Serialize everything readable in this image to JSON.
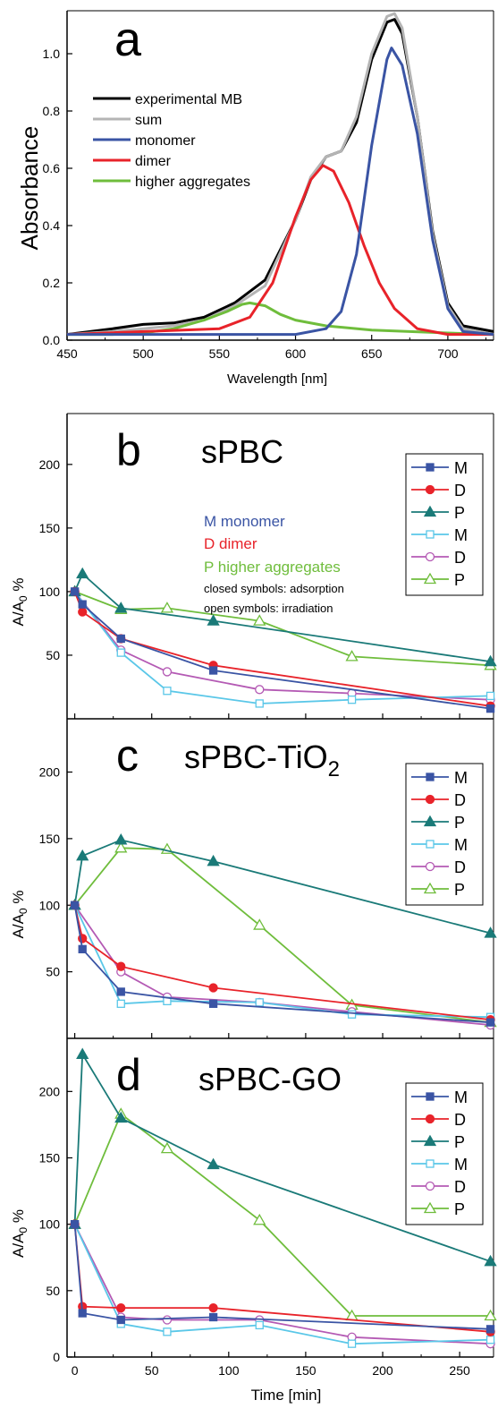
{
  "colors": {
    "black": "#000000",
    "gray": "#b4b4b4",
    "blue": "#3a54a4",
    "red": "#e8232a",
    "teal": "#1a7a78",
    "cyan": "#5ac7e8",
    "magenta": "#b45ab4",
    "green": "#6fbd3c"
  },
  "chart_data": [
    {
      "panel": "a",
      "type": "line",
      "xlabel": "Wavelength [nm]",
      "ylabel": "Absorbance",
      "xlim": [
        450,
        730
      ],
      "ylim": [
        0,
        1.15
      ],
      "xticks": [
        450,
        500,
        550,
        600,
        650,
        700
      ],
      "yticks": [
        0.0,
        0.2,
        0.4,
        0.6,
        0.8,
        1.0
      ],
      "legend": [
        "experimental MB",
        "sum",
        "monomer",
        "dimer",
        "higher aggregates"
      ],
      "series": [
        {
          "name": "experimental MB",
          "color": "black",
          "x": [
            450,
            480,
            500,
            520,
            540,
            560,
            580,
            600,
            610,
            620,
            630,
            640,
            650,
            660,
            665,
            670,
            680,
            690,
            700,
            710,
            730
          ],
          "y": [
            0.02,
            0.04,
            0.055,
            0.06,
            0.08,
            0.13,
            0.21,
            0.42,
            0.56,
            0.64,
            0.66,
            0.76,
            0.98,
            1.11,
            1.12,
            1.07,
            0.78,
            0.38,
            0.13,
            0.05,
            0.03
          ]
        },
        {
          "name": "sum",
          "color": "gray",
          "x": [
            450,
            480,
            500,
            520,
            540,
            560,
            580,
            600,
            610,
            620,
            630,
            640,
            650,
            660,
            665,
            670,
            680,
            690,
            700,
            710,
            730
          ],
          "y": [
            0.02,
            0.03,
            0.04,
            0.05,
            0.07,
            0.12,
            0.19,
            0.42,
            0.57,
            0.64,
            0.66,
            0.78,
            1.0,
            1.13,
            1.14,
            1.09,
            0.78,
            0.37,
            0.12,
            0.04,
            0.02
          ]
        },
        {
          "name": "monomer",
          "color": "blue",
          "x": [
            450,
            550,
            600,
            620,
            630,
            640,
            650,
            660,
            663,
            670,
            680,
            690,
            700,
            710,
            730
          ],
          "y": [
            0.02,
            0.02,
            0.02,
            0.04,
            0.1,
            0.3,
            0.68,
            0.98,
            1.02,
            0.96,
            0.72,
            0.35,
            0.11,
            0.03,
            0.02
          ]
        },
        {
          "name": "dimer",
          "color": "red",
          "x": [
            450,
            550,
            570,
            585,
            600,
            610,
            618,
            625,
            635,
            645,
            655,
            665,
            680,
            700,
            730
          ],
          "y": [
            0.02,
            0.04,
            0.08,
            0.2,
            0.43,
            0.56,
            0.61,
            0.59,
            0.48,
            0.33,
            0.2,
            0.11,
            0.04,
            0.02,
            0.02
          ]
        },
        {
          "name": "higher aggregates",
          "color": "green",
          "x": [
            450,
            480,
            500,
            520,
            540,
            555,
            565,
            570,
            580,
            590,
            600,
            620,
            650,
            700,
            730
          ],
          "y": [
            0.02,
            0.02,
            0.025,
            0.04,
            0.07,
            0.1,
            0.125,
            0.13,
            0.12,
            0.09,
            0.07,
            0.05,
            0.035,
            0.025,
            0.02
          ]
        }
      ],
      "label": "a"
    },
    {
      "panel": "b",
      "type": "line",
      "ylabel": "A/A0 %",
      "xlim": [
        -5,
        272
      ],
      "ylim": [
        0,
        240
      ],
      "yticks": [
        50,
        100,
        150,
        200
      ],
      "label": "b",
      "sample": "sPBC",
      "annotations": [
        "M monomer",
        "D dimer",
        "P higher aggregates",
        "closed symbols: adsorption",
        "open symbols: irradiation"
      ],
      "legend": [
        "M",
        "D",
        "P",
        "M",
        "D",
        "P"
      ],
      "series": [
        {
          "name": "M",
          "color": "blue",
          "marker": "square-filled",
          "x": [
            0,
            5,
            30,
            90,
            270
          ],
          "y": [
            100,
            90,
            63,
            38,
            8
          ]
        },
        {
          "name": "D",
          "color": "red",
          "marker": "circle-filled",
          "x": [
            0,
            5,
            30,
            90,
            270
          ],
          "y": [
            100,
            84,
            63,
            42,
            10
          ]
        },
        {
          "name": "P",
          "color": "teal",
          "marker": "triangle-filled",
          "x": [
            0,
            5,
            30,
            90,
            270
          ],
          "y": [
            100,
            114,
            87,
            77,
            45
          ]
        },
        {
          "name": "M",
          "color": "cyan",
          "marker": "square-open",
          "x": [
            0,
            30,
            60,
            120,
            180,
            270
          ],
          "y": [
            100,
            52,
            22,
            12,
            15,
            18
          ]
        },
        {
          "name": "D",
          "color": "magenta",
          "marker": "circle-open",
          "x": [
            0,
            30,
            60,
            120,
            180,
            270
          ],
          "y": [
            100,
            54,
            37,
            23,
            20,
            15
          ]
        },
        {
          "name": "P",
          "color": "green",
          "marker": "triangle-open",
          "x": [
            0,
            30,
            60,
            120,
            180,
            270
          ],
          "y": [
            100,
            86,
            87,
            77,
            49,
            42
          ]
        }
      ]
    },
    {
      "panel": "c",
      "type": "line",
      "ylabel": "A/A0 %",
      "xlim": [
        -5,
        272
      ],
      "ylim": [
        0,
        240
      ],
      "yticks": [
        50,
        100,
        150,
        200
      ],
      "label": "c",
      "sample": "sPBC-TiO2",
      "legend": [
        "M",
        "D",
        "P",
        "M",
        "D",
        "P"
      ],
      "series": [
        {
          "name": "M",
          "color": "blue",
          "marker": "square-filled",
          "x": [
            0,
            5,
            30,
            90,
            270
          ],
          "y": [
            100,
            67,
            35,
            26,
            12
          ]
        },
        {
          "name": "D",
          "color": "red",
          "marker": "circle-filled",
          "x": [
            0,
            5,
            30,
            90,
            270
          ],
          "y": [
            100,
            75,
            54,
            38,
            14
          ]
        },
        {
          "name": "P",
          "color": "teal",
          "marker": "triangle-filled",
          "x": [
            0,
            5,
            30,
            90,
            270
          ],
          "y": [
            100,
            137,
            149,
            133,
            79
          ]
        },
        {
          "name": "M",
          "color": "cyan",
          "marker": "square-open",
          "x": [
            0,
            30,
            60,
            120,
            180,
            270
          ],
          "y": [
            100,
            26,
            28,
            27,
            18,
            16
          ]
        },
        {
          "name": "D",
          "color": "magenta",
          "marker": "circle-open",
          "x": [
            0,
            30,
            60,
            120,
            180,
            270
          ],
          "y": [
            100,
            50,
            31,
            27,
            20,
            10
          ]
        },
        {
          "name": "P",
          "color": "green",
          "marker": "triangle-open",
          "x": [
            0,
            30,
            60,
            120,
            180,
            270
          ],
          "y": [
            100,
            143,
            142,
            85,
            25,
            12
          ]
        }
      ]
    },
    {
      "panel": "d",
      "type": "line",
      "xlabel": "Time [min]",
      "ylabel": "A/A0 %",
      "xlim": [
        -5,
        272
      ],
      "ylim": [
        0,
        240
      ],
      "xticks": [
        0,
        50,
        100,
        150,
        200,
        250
      ],
      "yticks": [
        0,
        50,
        100,
        150,
        200
      ],
      "label": "d",
      "sample": "sPBC-GO",
      "legend": [
        "M",
        "D",
        "P",
        "M",
        "D",
        "P"
      ],
      "series": [
        {
          "name": "M",
          "color": "blue",
          "marker": "square-filled",
          "x": [
            0,
            5,
            30,
            90,
            270
          ],
          "y": [
            100,
            33,
            28,
            30,
            21
          ]
        },
        {
          "name": "D",
          "color": "red",
          "marker": "circle-filled",
          "x": [
            0,
            5,
            30,
            90,
            270
          ],
          "y": [
            100,
            38,
            37,
            37,
            19
          ]
        },
        {
          "name": "P",
          "color": "teal",
          "marker": "triangle-filled",
          "x": [
            0,
            5,
            30,
            90,
            270
          ],
          "y": [
            100,
            228,
            180,
            145,
            72
          ]
        },
        {
          "name": "M",
          "color": "cyan",
          "marker": "square-open",
          "x": [
            0,
            30,
            60,
            120,
            180,
            270
          ],
          "y": [
            100,
            25,
            19,
            24,
            10,
            13
          ]
        },
        {
          "name": "D",
          "color": "magenta",
          "marker": "circle-open",
          "x": [
            0,
            30,
            60,
            120,
            180,
            270
          ],
          "y": [
            100,
            30,
            28,
            28,
            15,
            10
          ]
        },
        {
          "name": "P",
          "color": "green",
          "marker": "triangle-open",
          "x": [
            0,
            30,
            60,
            120,
            180,
            270
          ],
          "y": [
            100,
            183,
            157,
            103,
            31,
            31
          ]
        }
      ]
    }
  ]
}
